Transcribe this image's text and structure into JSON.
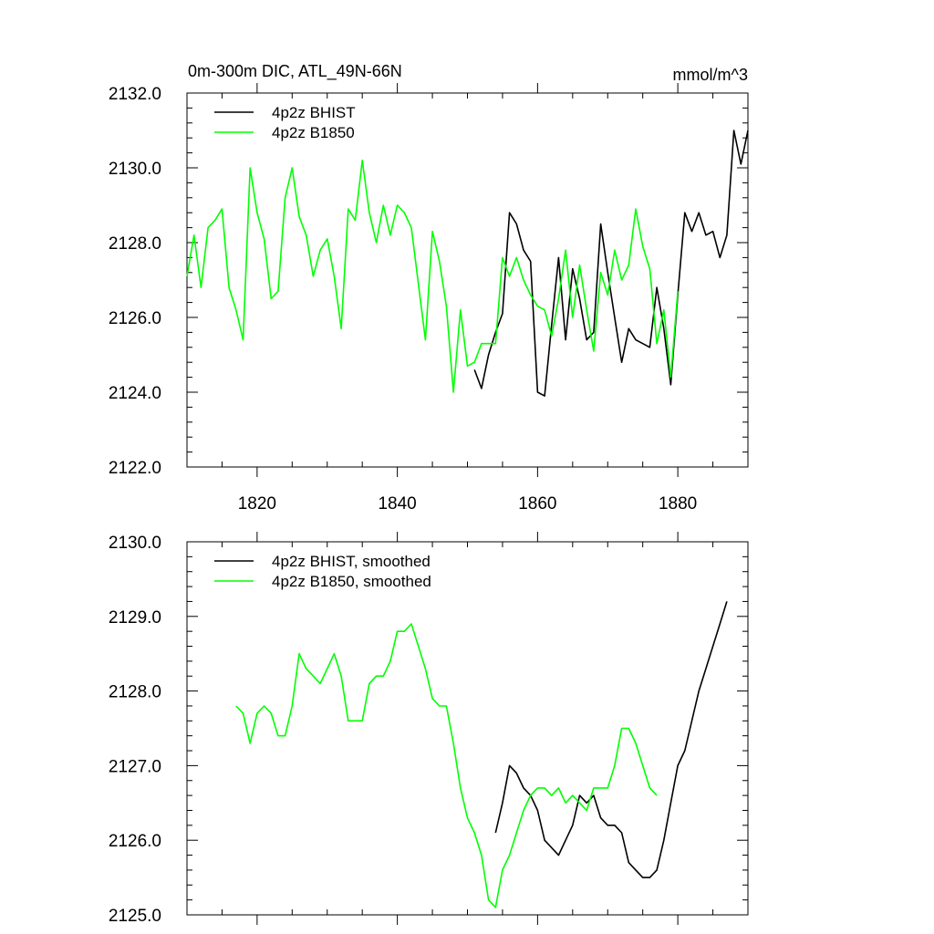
{
  "figure": {
    "title": "0m-300m DIC, ATL_49N-66N",
    "units": "mmol/m^3"
  },
  "chart_data": [
    {
      "type": "line",
      "title": "0m-300m DIC, ATL_49N-66N",
      "units_label": "mmol/m^3",
      "xlabel": "",
      "ylabel": "",
      "xlim": [
        1810,
        1890
      ],
      "ylim": [
        2122.0,
        2132.0
      ],
      "xticks": [
        1820,
        1840,
        1860,
        1880
      ],
      "xtick_labels": [
        "1820",
        "1840",
        "1860",
        "1880"
      ],
      "yticks": [
        2122.0,
        2124.0,
        2126.0,
        2128.0,
        2130.0,
        2132.0
      ],
      "ytick_labels": [
        "2122.0",
        "2124.0",
        "2126.0",
        "2128.0",
        "2130.0",
        "2132.0"
      ],
      "legend_position": "top-left",
      "grid": false,
      "series": [
        {
          "name": "4p2z BHIST",
          "color": "#000000",
          "x": [
            1851,
            1852,
            1853,
            1854,
            1855,
            1856,
            1857,
            1858,
            1859,
            1860,
            1861,
            1862,
            1863,
            1864,
            1865,
            1866,
            1867,
            1868,
            1869,
            1870,
            1871,
            1872,
            1873,
            1874,
            1875,
            1876,
            1877,
            1878,
            1879,
            1880,
            1881,
            1882,
            1883,
            1884,
            1885,
            1886,
            1887,
            1888,
            1889,
            1890
          ],
          "y": [
            2124.6,
            2124.1,
            2125.0,
            2125.6,
            2126.1,
            2128.8,
            2128.5,
            2127.8,
            2127.5,
            2124.0,
            2123.9,
            2125.8,
            2127.6,
            2125.4,
            2127.3,
            2126.5,
            2125.4,
            2125.6,
            2128.5,
            2127.2,
            2126.0,
            2124.8,
            2125.7,
            2125.4,
            2125.3,
            2125.2,
            2126.8,
            2125.7,
            2124.2,
            2126.6,
            2128.8,
            2128.3,
            2128.8,
            2128.2,
            2128.3,
            2127.6,
            2128.2,
            2131.0,
            2130.1,
            2131.0
          ]
        },
        {
          "name": "4p2z B1850",
          "color": "#00ff00",
          "x": [
            1810,
            1811,
            1812,
            1813,
            1814,
            1815,
            1816,
            1817,
            1818,
            1819,
            1820,
            1821,
            1822,
            1823,
            1824,
            1825,
            1826,
            1827,
            1828,
            1829,
            1830,
            1831,
            1832,
            1833,
            1834,
            1835,
            1836,
            1837,
            1838,
            1839,
            1840,
            1841,
            1842,
            1843,
            1844,
            1845,
            1846,
            1847,
            1848,
            1849,
            1850,
            1851,
            1852,
            1853,
            1854,
            1855,
            1856,
            1857,
            1858,
            1859,
            1860,
            1861,
            1862,
            1863,
            1864,
            1865,
            1866,
            1867,
            1868,
            1869,
            1870,
            1871,
            1872,
            1873,
            1874,
            1875,
            1876,
            1877,
            1878,
            1879,
            1880
          ],
          "y": [
            2127.1,
            2128.2,
            2126.8,
            2128.4,
            2128.6,
            2128.9,
            2126.8,
            2126.2,
            2125.4,
            2130.0,
            2128.8,
            2128.1,
            2126.5,
            2126.7,
            2129.2,
            2130.0,
            2128.7,
            2128.2,
            2127.1,
            2127.8,
            2128.1,
            2127.1,
            2125.7,
            2128.9,
            2128.6,
            2130.2,
            2128.8,
            2128.0,
            2129.0,
            2128.2,
            2129.0,
            2128.8,
            2128.4,
            2126.9,
            2125.4,
            2128.3,
            2127.5,
            2126.3,
            2124.0,
            2126.2,
            2124.7,
            2124.8,
            2125.3,
            2125.3,
            2125.3,
            2127.6,
            2127.1,
            2127.6,
            2127.0,
            2126.6,
            2126.3,
            2126.2,
            2125.5,
            2126.5,
            2127.8,
            2126.0,
            2127.4,
            2126.2,
            2125.1,
            2127.2,
            2126.6,
            2127.8,
            2127.0,
            2127.4,
            2128.9,
            2127.9,
            2127.3,
            2125.3,
            2126.2,
            2124.4,
            2126.7
          ]
        }
      ]
    },
    {
      "type": "line",
      "title": "",
      "xlabel": "",
      "ylabel": "",
      "xlim": [
        1810,
        1890
      ],
      "ylim": [
        2125.0,
        2130.0
      ],
      "xticks": [
        1820,
        1840,
        1860,
        1880
      ],
      "yticks": [
        2125.0,
        2126.0,
        2127.0,
        2128.0,
        2129.0,
        2130.0
      ],
      "ytick_labels": [
        "2125.0",
        "2126.0",
        "2127.0",
        "2128.0",
        "2129.0",
        "2130.0"
      ],
      "legend_position": "top-left",
      "grid": false,
      "series": [
        {
          "name": "4p2z BHIST, smoothed",
          "color": "#000000",
          "x": [
            1854,
            1855,
            1856,
            1857,
            1858,
            1859,
            1860,
            1861,
            1862,
            1863,
            1864,
            1865,
            1866,
            1867,
            1868,
            1869,
            1870,
            1871,
            1872,
            1873,
            1874,
            1875,
            1876,
            1877,
            1878,
            1879,
            1880,
            1881,
            1882,
            1883,
            1884,
            1885,
            1886,
            1887
          ],
          "y": [
            2126.1,
            2126.5,
            2127.0,
            2126.9,
            2126.7,
            2126.6,
            2126.4,
            2126.0,
            2125.9,
            2125.8,
            2126.0,
            2126.2,
            2126.6,
            2126.5,
            2126.6,
            2126.3,
            2126.2,
            2126.2,
            2126.1,
            2125.7,
            2125.6,
            2125.5,
            2125.5,
            2125.6,
            2126.0,
            2126.5,
            2127.0,
            2127.2,
            2127.6,
            2128.0,
            2128.3,
            2128.6,
            2128.9,
            2129.2
          ]
        },
        {
          "name": "4p2z B1850, smoothed",
          "color": "#00ff00",
          "x": [
            1817,
            1818,
            1819,
            1820,
            1821,
            1822,
            1823,
            1824,
            1825,
            1826,
            1827,
            1828,
            1829,
            1830,
            1831,
            1832,
            1833,
            1834,
            1835,
            1836,
            1837,
            1838,
            1839,
            1840,
            1841,
            1842,
            1843,
            1844,
            1845,
            1846,
            1847,
            1848,
            1849,
            1850,
            1851,
            1852,
            1853,
            1854,
            1855,
            1856,
            1857,
            1858,
            1859,
            1860,
            1861,
            1862,
            1863,
            1864,
            1865,
            1866,
            1867,
            1868,
            1869,
            1870,
            1871,
            1872,
            1873,
            1874,
            1875,
            1876,
            1877
          ],
          "y": [
            2127.8,
            2127.7,
            2127.3,
            2127.7,
            2127.8,
            2127.7,
            2127.4,
            2127.4,
            2127.8,
            2128.5,
            2128.3,
            2128.2,
            2128.1,
            2128.3,
            2128.5,
            2128.2,
            2127.6,
            2127.6,
            2127.6,
            2128.1,
            2128.2,
            2128.2,
            2128.4,
            2128.8,
            2128.8,
            2128.9,
            2128.6,
            2128.3,
            2127.9,
            2127.8,
            2127.8,
            2127.3,
            2126.7,
            2126.3,
            2126.1,
            2125.8,
            2125.2,
            2125.1,
            2125.6,
            2125.8,
            2126.1,
            2126.4,
            2126.6,
            2126.7,
            2126.7,
            2126.6,
            2126.7,
            2126.5,
            2126.6,
            2126.5,
            2126.4,
            2126.7,
            2126.7,
            2126.7,
            2127.0,
            2127.5,
            2127.5,
            2127.3,
            2127.0,
            2126.7,
            2126.6
          ]
        }
      ]
    }
  ]
}
